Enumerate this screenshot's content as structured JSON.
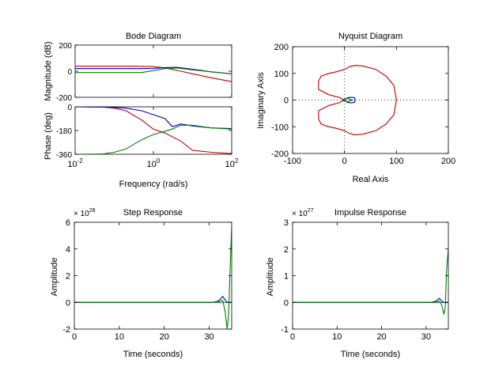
{
  "colors": {
    "red": "#c00000",
    "blue": "#0000cc",
    "green": "#008000",
    "grid": "#000000"
  },
  "chart_data": [
    {
      "type": "line",
      "title": "Bode Diagram",
      "xlabel": "Frequency  (rad/s)",
      "xscale": "log",
      "xlim": [
        0.01,
        100
      ],
      "xticks": [
        {
          "v": 0.01,
          "base": "10",
          "exp": "-2"
        },
        {
          "v": 1,
          "base": "10",
          "exp": "0"
        },
        {
          "v": 100,
          "base": "10",
          "exp": "2"
        }
      ],
      "magnitude": {
        "ylabel": "Magnitude (dB)",
        "ylim": [
          -200,
          200
        ],
        "yticks": [
          "200",
          "0",
          "-200"
        ],
        "series": [
          {
            "color": "red",
            "x": [
              0.01,
              0.1,
              0.3,
              1,
              2,
              5,
              10,
              30,
              100
            ],
            "y": [
              38,
              38,
              38,
              35,
              25,
              0,
              -20,
              -50,
              -80
            ]
          },
          {
            "color": "blue",
            "x": [
              0.01,
              0.1,
              0.5,
              1,
              2,
              4,
              10,
              30,
              100
            ],
            "y": [
              20,
              20,
              20,
              22,
              28,
              30,
              15,
              -5,
              -20
            ]
          },
          {
            "color": "green",
            "x": [
              0.01,
              0.1,
              0.5,
              1,
              2,
              4,
              10,
              30,
              100
            ],
            "y": [
              -10,
              -10,
              -10,
              5,
              20,
              25,
              10,
              -5,
              -20
            ]
          }
        ]
      },
      "phase": {
        "ylabel": "Phase (deg)",
        "ylim": [
          -360,
          0
        ],
        "yticks": [
          "0",
          "-180",
          "-360"
        ],
        "series": [
          {
            "color": "red",
            "x": [
              0.01,
              0.05,
              0.1,
              0.2,
              0.5,
              1,
              2,
              5,
              10,
              30,
              100
            ],
            "y": [
              0,
              -2,
              -10,
              -30,
              -100,
              -170,
              -200,
              -260,
              -330,
              -345,
              -355
            ]
          },
          {
            "color": "blue",
            "x": [
              0.01,
              0.05,
              0.1,
              0.2,
              0.5,
              1,
              2,
              3,
              4,
              5,
              10,
              30,
              100
            ],
            "y": [
              0,
              -2,
              -5,
              -10,
              -30,
              -60,
              -90,
              -150,
              -140,
              -130,
              -145,
              -160,
              -165
            ]
          },
          {
            "color": "green",
            "x": [
              0.01,
              0.05,
              0.1,
              0.2,
              0.5,
              1,
              2,
              3,
              5,
              10,
              30,
              100
            ],
            "y": [
              -360,
              -358,
              -345,
              -320,
              -250,
              -210,
              -185,
              -170,
              -140,
              -140,
              -160,
              -170
            ]
          }
        ]
      }
    },
    {
      "type": "line",
      "title": "Nyquist Diagram",
      "xlabel": "Real Axis",
      "ylabel": "Imaginary Axis",
      "xlim": [
        -100,
        200
      ],
      "ylim": [
        -200,
        200
      ],
      "xticks": [
        "-100",
        "0",
        "100",
        "200"
      ],
      "yticks": [
        "200",
        "100",
        "0",
        "-100",
        "-200"
      ],
      "grid": "dotted axes through origin",
      "series": [
        {
          "color": "red",
          "x": [
            0,
            -10,
            -30,
            -50,
            -50,
            -45,
            -30,
            -15,
            0,
            10,
            20,
            35,
            60,
            80,
            95,
            100,
            95,
            80,
            60,
            35,
            20,
            10,
            0,
            -15,
            -30,
            -45,
            -50,
            -50,
            -30,
            -10,
            0
          ],
          "y": [
            0,
            10,
            20,
            40,
            70,
            90,
            100,
            106,
            115,
            125,
            130,
            128,
            115,
            90,
            55,
            0,
            -55,
            -90,
            -115,
            -128,
            -130,
            -125,
            -115,
            -106,
            -100,
            -90,
            -70,
            -40,
            -20,
            -10,
            0
          ]
        },
        {
          "color": "blue",
          "x": [
            0,
            5,
            10,
            15,
            20,
            20,
            15,
            10,
            5,
            0,
            0
          ],
          "y": [
            0,
            8,
            10,
            10,
            8,
            -8,
            -10,
            -10,
            -8,
            0,
            0
          ]
        },
        {
          "color": "green",
          "x": [
            -5,
            0,
            5,
            10,
            15,
            10,
            5,
            0,
            -5
          ],
          "y": [
            0,
            4,
            6,
            4,
            0,
            -4,
            -6,
            -4,
            0
          ]
        }
      ]
    },
    {
      "type": "line",
      "title": "Step Response",
      "xlabel": "Time (seconds)",
      "ylabel": "Amplitude",
      "exponent": {
        "base": "× 10",
        "exp": "28"
      },
      "xlim": [
        0,
        35
      ],
      "ylim": [
        -2,
        6
      ],
      "xticks": [
        "0",
        "10",
        "20",
        "30"
      ],
      "yticks": [
        "6",
        "4",
        "2",
        "0",
        "-2"
      ],
      "series": [
        {
          "color": "blue",
          "x": [
            0,
            30,
            31,
            32,
            32.5,
            33,
            33.5,
            34,
            35
          ],
          "y": [
            0,
            0,
            0.02,
            0.1,
            0.25,
            0.45,
            0.2,
            0,
            0
          ]
        },
        {
          "color": "green",
          "x": [
            0,
            31,
            32,
            33,
            33.5,
            34,
            34.3,
            34.6,
            35
          ],
          "y": [
            0,
            0,
            0.05,
            0.15,
            -0.6,
            -2,
            -1,
            2,
            5.8
          ]
        }
      ]
    },
    {
      "type": "line",
      "title": "Impulse Response",
      "xlabel": "Time (seconds)",
      "ylabel": "Amplitude",
      "exponent": {
        "base": "× 10",
        "exp": "27"
      },
      "xlim": [
        0,
        35
      ],
      "ylim": [
        -1,
        3
      ],
      "xticks": [
        "0",
        "10",
        "20",
        "30"
      ],
      "yticks": [
        "3",
        "2",
        "1",
        "0",
        "-1"
      ],
      "series": [
        {
          "color": "blue",
          "x": [
            0,
            31,
            32,
            32.5,
            33,
            33.5,
            34,
            35
          ],
          "y": [
            0,
            0,
            0.03,
            0.08,
            0.15,
            0.05,
            0,
            0
          ]
        },
        {
          "color": "green",
          "x": [
            0,
            32,
            33,
            33.5,
            34,
            34.3,
            34.6,
            35
          ],
          "y": [
            0,
            0,
            0.05,
            -0.1,
            -0.45,
            -0.2,
            1.2,
            2.05
          ]
        }
      ]
    }
  ]
}
